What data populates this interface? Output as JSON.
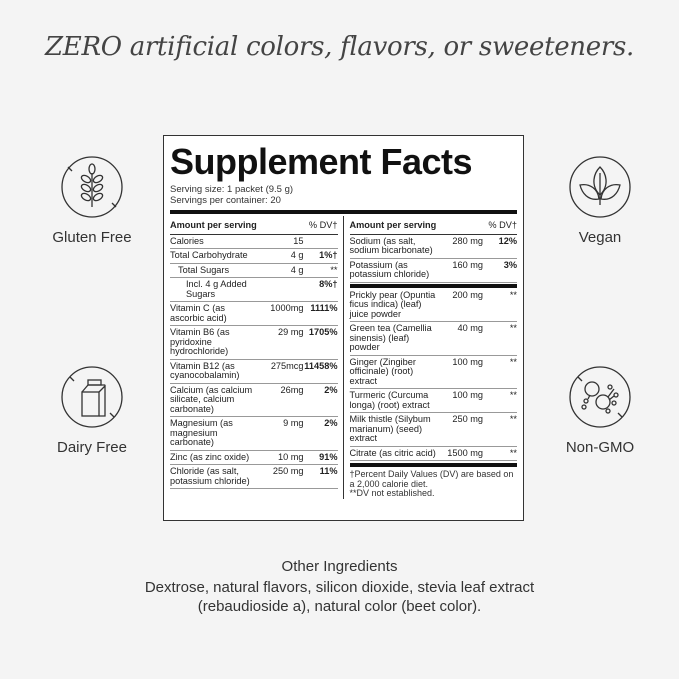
{
  "headline": "ZERO artificial colors, flavors, or sweeteners.",
  "badges": {
    "gluten": "Gluten Free",
    "dairy": "Dairy Free",
    "vegan": "Vegan",
    "gmo": "Non-GMO"
  },
  "facts": {
    "title": "Supplement Facts",
    "serving_size": "Serving size: 1 packet (9.5 g)",
    "servings": "Servings per container: 20",
    "header_amount": "Amount per serving",
    "header_dv": "% DV†",
    "left": [
      {
        "name": "Calories",
        "amount": "15",
        "dv": ""
      },
      {
        "name": "Total Carbohydrate",
        "amount": "4 g",
        "dv": "1%†"
      },
      {
        "name": "Total Sugars",
        "amount": "4 g",
        "dv": "**",
        "indent": 1
      },
      {
        "name": "Incl. 4 g Added Sugars",
        "amount": "",
        "dv": "8%†",
        "indent": 2
      },
      {
        "name": "Vitamin C (as ascorbic acid)",
        "amount": "1000mg",
        "dv": "1111%"
      },
      {
        "name": "Vitamin B6 (as pyridoxine hydrochloride)",
        "amount": "29 mg",
        "dv": "1705%"
      },
      {
        "name": "Vitamin B12 (as cyanocobalamin)",
        "amount": "275mcg",
        "dv": "11458%"
      },
      {
        "name": "Calcium (as calcium silicate, calcium carbonate)",
        "amount": "26mg",
        "dv": "2%"
      },
      {
        "name": "Magnesium (as magnesium carbonate)",
        "amount": "9 mg",
        "dv": "2%"
      },
      {
        "name": "Zinc (as zinc oxide)",
        "amount": "10 mg",
        "dv": "91%"
      },
      {
        "name": "Chloride (as salt, potassium chloride)",
        "amount": "250 mg",
        "dv": "11%"
      }
    ],
    "right_top": [
      {
        "name": "Sodium (as salt, sodium bicarbonate)",
        "amount": "280 mg",
        "dv": "12%"
      },
      {
        "name": "Potassium (as potassium chloride)",
        "amount": "160 mg",
        "dv": "3%"
      }
    ],
    "right_bottom": [
      {
        "name": "Prickly pear (Opuntia ficus indica) (leaf) juice powder",
        "amount": "200 mg",
        "dv": "**"
      },
      {
        "name": "Green tea (Camellia sinensis) (leaf) powder",
        "amount": "40 mg",
        "dv": "**"
      },
      {
        "name": "Ginger (Zingiber officinale) (root) extract",
        "amount": "100 mg",
        "dv": "**"
      },
      {
        "name": "Turmeric (Curcuma longa) (root) extract",
        "amount": "100 mg",
        "dv": "**"
      },
      {
        "name": "Milk thistle (Silybum marianum) (seed) extract",
        "amount": "250 mg",
        "dv": "**"
      },
      {
        "name": "Citrate (as citric acid)",
        "amount": "1500 mg",
        "dv": "**"
      }
    ],
    "footnote1": "†Percent Daily Values (DV) are based on a 2,000 calorie diet.",
    "footnote2": "**DV not established."
  },
  "other": {
    "heading": "Other Ingredients",
    "text": "Dextrose, natural flavors, silicon dioxide, stevia leaf extract (rebaudioside a), natural color (beet color)."
  }
}
